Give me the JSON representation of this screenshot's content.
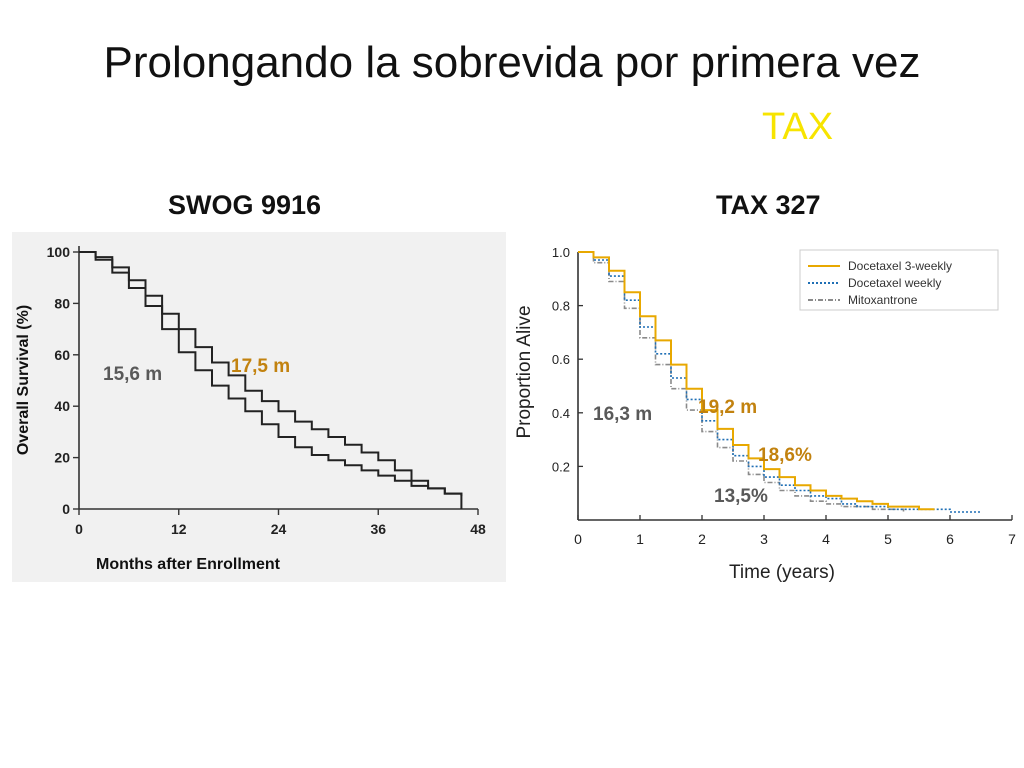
{
  "slide": {
    "title": "Prolongando la sobrevida por primera vez",
    "tag": "TAX",
    "tag_color": "#f7e400"
  },
  "chart_data": [
    {
      "id": "swog",
      "type": "line",
      "title": "SWOG 9916",
      "xlabel": "Months after Enrollment",
      "ylabel": "Overall Survival (%)",
      "xlim": [
        0,
        48
      ],
      "ylim": [
        0,
        100
      ],
      "xticks": [
        "0",
        "12",
        "24",
        "36",
        "48"
      ],
      "yticks": [
        "0",
        "20",
        "40",
        "60",
        "80",
        "100"
      ],
      "background": "#f1f1f1",
      "series": [
        {
          "color": "#222222",
          "x": [
            0,
            2,
            4,
            6,
            8,
            10,
            12,
            14,
            16,
            18,
            20,
            22,
            24,
            26,
            28,
            30,
            32,
            34,
            36,
            38,
            40,
            42,
            44,
            46
          ],
          "y": [
            100,
            98,
            94,
            89,
            83,
            76,
            70,
            63,
            57,
            52,
            46,
            42,
            38,
            34,
            31,
            28,
            25,
            22,
            19,
            15,
            11,
            8,
            6,
            5
          ]
        },
        {
          "color": "#222222",
          "x": [
            0,
            2,
            4,
            6,
            8,
            10,
            12,
            14,
            16,
            18,
            20,
            22,
            24,
            26,
            28,
            30,
            32,
            34,
            36,
            38,
            40,
            42,
            44,
            46
          ],
          "y": [
            100,
            97,
            92,
            86,
            79,
            70,
            61,
            54,
            48,
            43,
            38,
            33,
            28,
            24,
            21,
            19,
            17,
            15,
            13,
            11,
            9,
            8,
            6,
            0
          ]
        }
      ],
      "annotations": [
        {
          "text": "15,6 m",
          "color": "#595959"
        },
        {
          "text": "17,5 m",
          "color": "#c2820f"
        }
      ]
    },
    {
      "id": "tax327",
      "type": "line",
      "title": "TAX 327",
      "xlabel": "Time (years)",
      "ylabel": "Proportion Alive",
      "xlim": [
        0,
        7
      ],
      "ylim": [
        0,
        1.0
      ],
      "xticks": [
        "0",
        "1",
        "2",
        "3",
        "4",
        "5",
        "6",
        "7"
      ],
      "yticks": [
        "0.2",
        "0.4",
        "0.6",
        "0.8",
        "1.0"
      ],
      "legend_position": "top-right",
      "series": [
        {
          "name": "Docetaxel 3-weekly",
          "color": "#e8a800",
          "x": [
            0,
            0.25,
            0.5,
            0.75,
            1.0,
            1.25,
            1.5,
            1.75,
            2.0,
            2.25,
            2.5,
            2.75,
            3.0,
            3.25,
            3.5,
            3.75,
            4.0,
            4.25,
            4.5,
            4.75,
            5.0,
            5.25,
            5.5,
            5.75
          ],
          "y": [
            1.0,
            0.98,
            0.93,
            0.85,
            0.76,
            0.67,
            0.58,
            0.49,
            0.41,
            0.34,
            0.28,
            0.23,
            0.19,
            0.16,
            0.13,
            0.11,
            0.09,
            0.08,
            0.07,
            0.06,
            0.05,
            0.05,
            0.04,
            0.04
          ]
        },
        {
          "name": "Docetaxel weekly",
          "color": "#1f6fb5",
          "x": [
            0,
            0.25,
            0.5,
            0.75,
            1.0,
            1.25,
            1.5,
            1.75,
            2.0,
            2.25,
            2.5,
            2.75,
            3.0,
            3.25,
            3.5,
            3.75,
            4.0,
            4.25,
            4.5,
            4.75,
            5.0,
            5.5,
            6.0,
            6.5
          ],
          "y": [
            1.0,
            0.97,
            0.91,
            0.82,
            0.72,
            0.62,
            0.53,
            0.45,
            0.37,
            0.3,
            0.24,
            0.2,
            0.16,
            0.13,
            0.11,
            0.09,
            0.08,
            0.06,
            0.05,
            0.05,
            0.04,
            0.04,
            0.03,
            0.03
          ]
        },
        {
          "name": "Mitoxantrone",
          "color": "#8a8a8a",
          "x": [
            0,
            0.25,
            0.5,
            0.75,
            1.0,
            1.25,
            1.5,
            1.75,
            2.0,
            2.25,
            2.5,
            2.75,
            3.0,
            3.25,
            3.5,
            3.75,
            4.0,
            4.25,
            4.5,
            4.75,
            5.0,
            5.25
          ],
          "y": [
            1.0,
            0.96,
            0.89,
            0.79,
            0.68,
            0.58,
            0.49,
            0.41,
            0.33,
            0.27,
            0.22,
            0.17,
            0.14,
            0.11,
            0.09,
            0.07,
            0.06,
            0.05,
            0.05,
            0.04,
            0.04,
            0.03
          ]
        }
      ],
      "annotations": [
        {
          "text": "16,3 m",
          "color": "#595959"
        },
        {
          "text": "19,2 m",
          "color": "#c2820f"
        },
        {
          "text": "18,6%",
          "color": "#c2820f"
        },
        {
          "text": "13,5%",
          "color": "#595959"
        }
      ]
    }
  ]
}
